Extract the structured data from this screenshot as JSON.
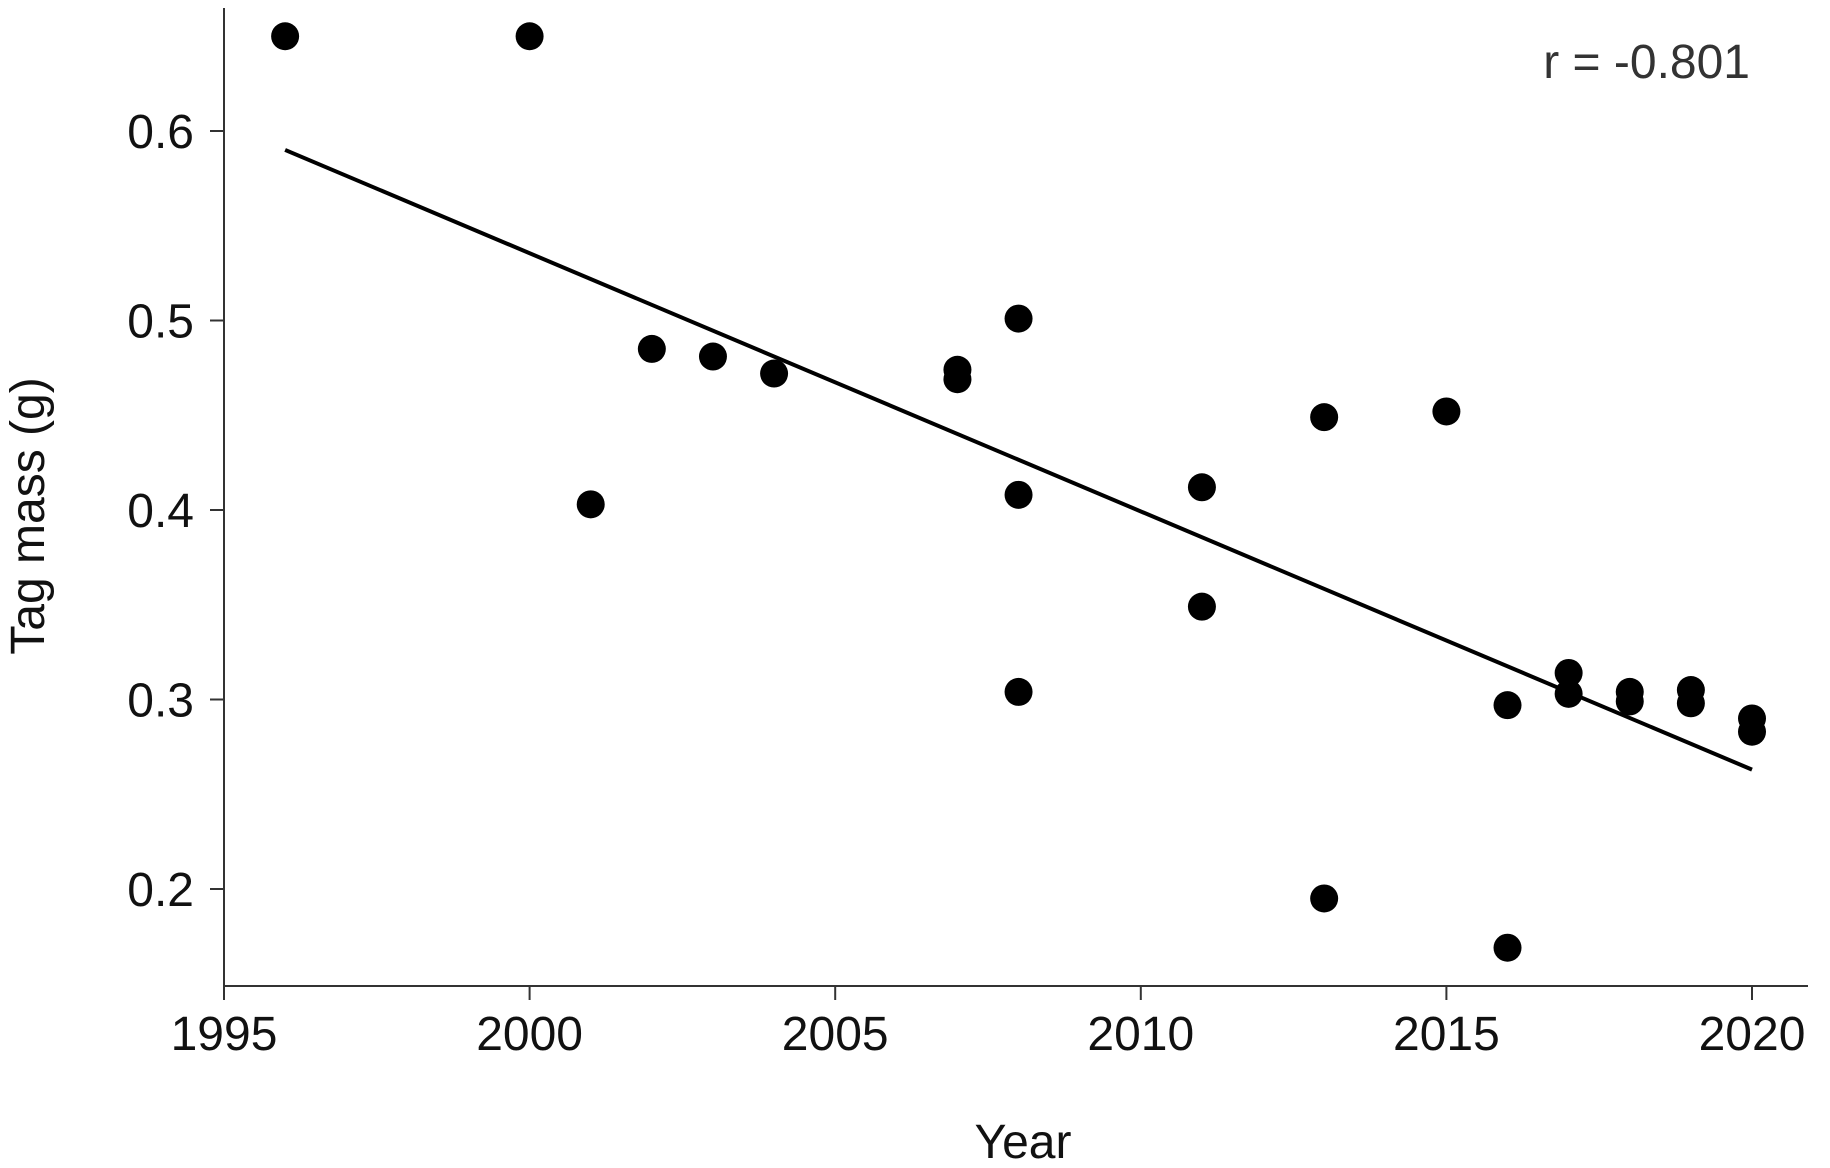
{
  "chart_data": {
    "type": "scatter",
    "xlabel": "Year",
    "ylabel": "Tag mass (g)",
    "xlim": [
      1995,
      2021
    ],
    "ylim": [
      0.15,
      0.665
    ],
    "xticks": [
      1995,
      2000,
      2005,
      2010,
      2015,
      2020
    ],
    "xtick_labels": [
      "1995",
      "2000",
      "2005",
      "2010",
      "2015",
      "2020"
    ],
    "yticks": [
      0.2,
      0.3,
      0.4,
      0.5,
      0.6
    ],
    "ytick_labels": [
      "0.2",
      "0.3",
      "0.4",
      "0.5",
      "0.6"
    ],
    "annotation": "r = -0.801",
    "grid": false,
    "series": [
      {
        "points": [
          {
            "x": 1996,
            "y": 0.65
          },
          {
            "x": 2000,
            "y": 0.65
          },
          {
            "x": 2001,
            "y": 0.403
          },
          {
            "x": 2002,
            "y": 0.485
          },
          {
            "x": 2003,
            "y": 0.481
          },
          {
            "x": 2004,
            "y": 0.472
          },
          {
            "x": 2007,
            "y": 0.474
          },
          {
            "x": 2007,
            "y": 0.469
          },
          {
            "x": 2008,
            "y": 0.501
          },
          {
            "x": 2008,
            "y": 0.408
          },
          {
            "x": 2008,
            "y": 0.304
          },
          {
            "x": 2011,
            "y": 0.412
          },
          {
            "x": 2011,
            "y": 0.349
          },
          {
            "x": 2013,
            "y": 0.449
          },
          {
            "x": 2013,
            "y": 0.195
          },
          {
            "x": 2015,
            "y": 0.452
          },
          {
            "x": 2016,
            "y": 0.297
          },
          {
            "x": 2016,
            "y": 0.169
          },
          {
            "x": 2017,
            "y": 0.314
          },
          {
            "x": 2017,
            "y": 0.303
          },
          {
            "x": 2018,
            "y": 0.304
          },
          {
            "x": 2018,
            "y": 0.299
          },
          {
            "x": 2019,
            "y": 0.305
          },
          {
            "x": 2019,
            "y": 0.298
          },
          {
            "x": 2020,
            "y": 0.29
          },
          {
            "x": 2020,
            "y": 0.283
          }
        ]
      }
    ],
    "trend_line": {
      "x": [
        1996,
        2020
      ],
      "y": [
        0.59,
        0.263
      ]
    },
    "colors": {
      "points": "#000000",
      "line": "#000000",
      "axis": "#333333"
    }
  }
}
